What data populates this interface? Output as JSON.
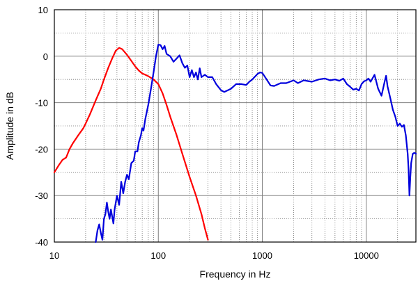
{
  "chart_data": {
    "type": "line",
    "title": "",
    "xlabel": "Frequency in Hz",
    "ylabel": "Amplitude in dB",
    "x_scale": "log",
    "xlim": [
      10,
      30000
    ],
    "ylim": [
      -40,
      10
    ],
    "grid": true,
    "legend": "none",
    "x_ticks": [
      {
        "value": 10,
        "label": "10"
      },
      {
        "value": 100,
        "label": "100"
      },
      {
        "value": 1000,
        "label": "1000"
      },
      {
        "value": 10000,
        "label": "10000"
      }
    ],
    "y_ticks": [
      {
        "value": 10,
        "label": "10"
      },
      {
        "value": 0,
        "label": "0"
      },
      {
        "value": -10,
        "label": "-10"
      },
      {
        "value": -20,
        "label": "-20"
      },
      {
        "value": -30,
        "label": "-30"
      },
      {
        "value": -40,
        "label": "-40"
      }
    ],
    "series": [
      {
        "color": "#ff0000",
        "points": [
          [
            10,
            -25
          ],
          [
            11,
            -23.5
          ],
          [
            12,
            -22.3
          ],
          [
            13,
            -21.8
          ],
          [
            14,
            -20
          ],
          [
            15,
            -18.8
          ],
          [
            17,
            -17
          ],
          [
            19,
            -15.5
          ],
          [
            20,
            -14.5
          ],
          [
            22,
            -12.5
          ],
          [
            25,
            -9.5
          ],
          [
            28,
            -7
          ],
          [
            30,
            -5
          ],
          [
            33,
            -2.5
          ],
          [
            36,
            -0.5
          ],
          [
            39,
            1.2
          ],
          [
            42,
            1.8
          ],
          [
            45,
            1.5
          ],
          [
            50,
            0.3
          ],
          [
            55,
            -1
          ],
          [
            60,
            -2.2
          ],
          [
            65,
            -3.1
          ],
          [
            70,
            -3.7
          ],
          [
            75,
            -4
          ],
          [
            80,
            -4.3
          ],
          [
            90,
            -5
          ],
          [
            100,
            -6
          ],
          [
            110,
            -8
          ],
          [
            120,
            -10.5
          ],
          [
            130,
            -13
          ],
          [
            150,
            -17
          ],
          [
            170,
            -21
          ],
          [
            200,
            -26
          ],
          [
            230,
            -30
          ],
          [
            260,
            -34
          ],
          [
            280,
            -37
          ],
          [
            300,
            -39.5
          ]
        ]
      },
      {
        "color": "#0000dd",
        "points": [
          [
            25,
            -40
          ],
          [
            26,
            -37.5
          ],
          [
            27,
            -36.2
          ],
          [
            28,
            -38
          ],
          [
            29,
            -39.5
          ],
          [
            30,
            -35
          ],
          [
            31,
            -34
          ],
          [
            32,
            -31.5
          ],
          [
            33,
            -33.5
          ],
          [
            34,
            -35
          ],
          [
            35,
            -33
          ],
          [
            37,
            -36
          ],
          [
            38,
            -33
          ],
          [
            40,
            -30
          ],
          [
            42,
            -32
          ],
          [
            44,
            -27
          ],
          [
            46,
            -29.5
          ],
          [
            48,
            -27
          ],
          [
            50,
            -25.5
          ],
          [
            52,
            -26.5
          ],
          [
            55,
            -23
          ],
          [
            58,
            -22.5
          ],
          [
            60,
            -20.5
          ],
          [
            63,
            -20.5
          ],
          [
            65,
            -18.5
          ],
          [
            68,
            -17
          ],
          [
            70,
            -15.5
          ],
          [
            72,
            -16
          ],
          [
            75,
            -13.5
          ],
          [
            80,
            -10.5
          ],
          [
            85,
            -7
          ],
          [
            90,
            -3.5
          ],
          [
            95,
            0
          ],
          [
            100,
            2.5
          ],
          [
            105,
            2.4
          ],
          [
            110,
            1.5
          ],
          [
            115,
            2.2
          ],
          [
            120,
            0.5
          ],
          [
            130,
            0
          ],
          [
            140,
            -1.2
          ],
          [
            150,
            -0.5
          ],
          [
            160,
            0.2
          ],
          [
            170,
            -1.5
          ],
          [
            180,
            -2.5
          ],
          [
            190,
            -2
          ],
          [
            200,
            -4.5
          ],
          [
            210,
            -3
          ],
          [
            220,
            -4.5
          ],
          [
            230,
            -3.5
          ],
          [
            240,
            -5
          ],
          [
            250,
            -2.6
          ],
          [
            260,
            -4.5
          ],
          [
            280,
            -4
          ],
          [
            300,
            -4.5
          ],
          [
            330,
            -4.5
          ],
          [
            360,
            -6
          ],
          [
            400,
            -7.3
          ],
          [
            430,
            -7.7
          ],
          [
            500,
            -7
          ],
          [
            560,
            -6
          ],
          [
            630,
            -6
          ],
          [
            700,
            -6.2
          ],
          [
            750,
            -5.5
          ],
          [
            800,
            -5
          ],
          [
            900,
            -3.8
          ],
          [
            950,
            -3.5
          ],
          [
            1000,
            -3.6
          ],
          [
            1100,
            -5
          ],
          [
            1200,
            -6.3
          ],
          [
            1300,
            -6.4
          ],
          [
            1500,
            -5.8
          ],
          [
            1700,
            -5.8
          ],
          [
            2000,
            -5.2
          ],
          [
            2200,
            -5.8
          ],
          [
            2500,
            -5.2
          ],
          [
            3000,
            -5.5
          ],
          [
            3500,
            -5
          ],
          [
            4000,
            -4.8
          ],
          [
            4500,
            -5.2
          ],
          [
            5000,
            -5
          ],
          [
            5500,
            -5.3
          ],
          [
            6000,
            -4.8
          ],
          [
            6500,
            -6
          ],
          [
            7000,
            -6.6
          ],
          [
            7500,
            -7.2
          ],
          [
            8000,
            -7
          ],
          [
            8500,
            -7.4
          ],
          [
            9000,
            -6
          ],
          [
            9500,
            -5.4
          ],
          [
            10000,
            -5.2
          ],
          [
            10500,
            -4.8
          ],
          [
            11000,
            -5.5
          ],
          [
            12000,
            -4
          ],
          [
            13000,
            -7
          ],
          [
            14000,
            -8.5
          ],
          [
            15000,
            -5.5
          ],
          [
            15500,
            -4.2
          ],
          [
            16000,
            -6.5
          ],
          [
            17000,
            -9
          ],
          [
            18000,
            -11.5
          ],
          [
            19000,
            -13
          ],
          [
            20000,
            -15
          ],
          [
            21000,
            -14.5
          ],
          [
            22000,
            -15.2
          ],
          [
            23000,
            -14.8
          ],
          [
            24000,
            -17
          ],
          [
            25000,
            -21
          ],
          [
            25500,
            -24.5
          ],
          [
            26000,
            -30
          ],
          [
            26500,
            -26
          ],
          [
            27000,
            -23
          ],
          [
            28000,
            -21
          ],
          [
            29000,
            -20.8
          ],
          [
            30000,
            -21
          ]
        ]
      }
    ]
  }
}
